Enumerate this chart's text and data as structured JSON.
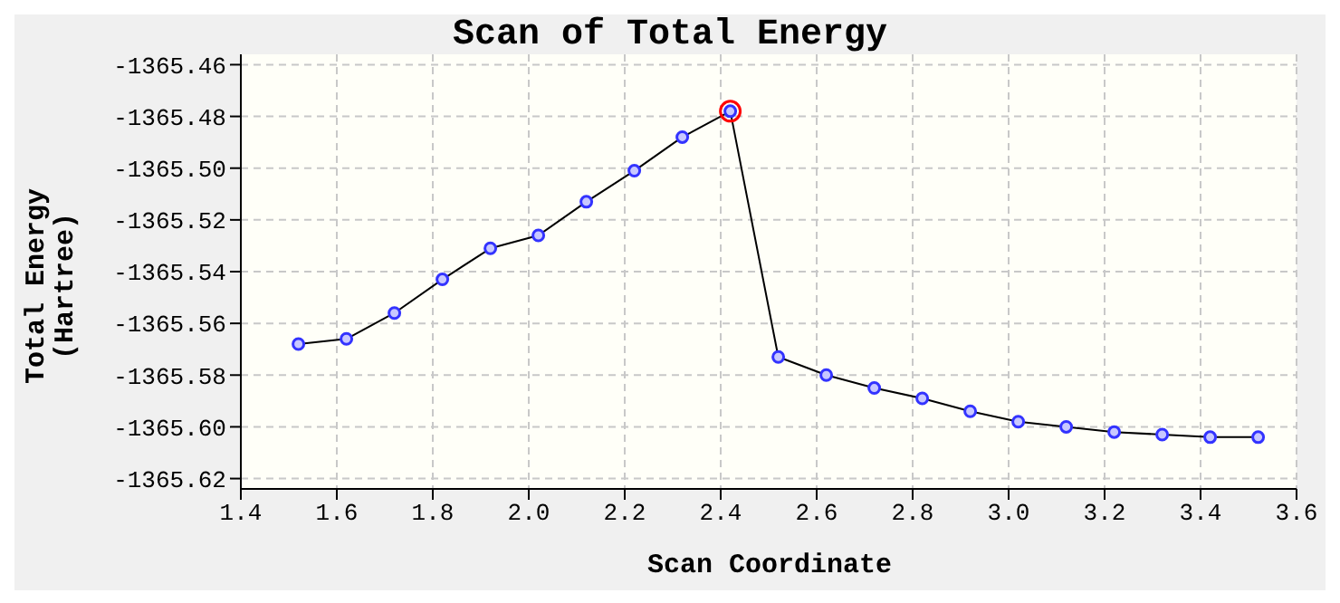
{
  "chart_data": {
    "type": "line",
    "title": "Scan of Total Energy",
    "xlabel": "Scan Coordinate",
    "ylabel": "Total Energy\n(Hartree)",
    "xlim": [
      1.4,
      3.6
    ],
    "ylim": [
      -1365.624,
      -1365.456
    ],
    "xticks": [
      1.4,
      1.6,
      1.8,
      {
        "value": 2.0,
        "label": "2.0"
      },
      2.2,
      2.4,
      2.6,
      2.8,
      {
        "value": 3.0,
        "label": "3.0"
      },
      3.2,
      3.4,
      3.6
    ],
    "yticks": [
      -1365.46,
      -1365.48,
      {
        "value": -1365.5,
        "label": "-1365.50"
      },
      -1365.52,
      -1365.54,
      -1365.56,
      -1365.58,
      {
        "value": -1365.6,
        "label": "-1365.60"
      },
      -1365.62
    ],
    "grid": true,
    "marker": "circle",
    "line_style": "solid",
    "series": [
      {
        "color": "#3333ff",
        "x": [
          1.52,
          1.62,
          1.72,
          1.82,
          1.92,
          2.02,
          2.12,
          2.22,
          2.32,
          2.42,
          2.52,
          2.62,
          2.72,
          2.82,
          2.92,
          3.02,
          3.12,
          3.22,
          3.32,
          3.42,
          3.52
        ],
        "values": [
          -1365.568,
          -1365.566,
          -1365.556,
          -1365.543,
          -1365.531,
          -1365.526,
          -1365.513,
          -1365.501,
          -1365.488,
          -1365.478,
          -1365.573,
          -1365.58,
          -1365.585,
          -1365.589,
          -1365.594,
          -1365.598,
          -1365.6,
          -1365.602,
          -1365.603,
          -1365.604,
          -1365.604
        ]
      },
      {
        "type": "scatter",
        "color": "#ff0000",
        "x": [
          2.42
        ],
        "values": [
          -1365.478
        ]
      }
    ]
  }
}
